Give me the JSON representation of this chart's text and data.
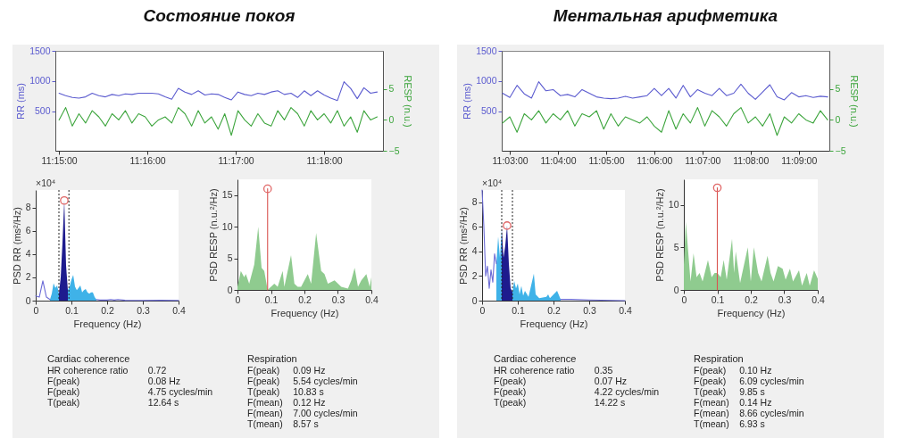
{
  "chart_data": [
    {
      "type": "line",
      "title": "Состояние покоя",
      "ylabel": "RR (ms)",
      "y2label": "RESP (n.u.)",
      "x": [
        11.25,
        11.25125,
        11.2525,
        11.25375,
        11.255,
        11.25625,
        11.2575,
        11.25875,
        11.26,
        11.26125,
        11.2625,
        11.26375,
        11.265,
        11.26625,
        11.2675,
        11.26875,
        11.27,
        11.27125,
        11.2725,
        11.27375,
        11.275,
        11.27625,
        11.2775,
        11.27875,
        11.28,
        11.28125,
        11.2825,
        11.28375,
        11.285,
        11.28625,
        11.2875,
        11.28875,
        11.29,
        11.29125,
        11.2925,
        11.29375,
        11.295,
        11.29625,
        11.2975,
        11.29875,
        11.3,
        11.30125,
        11.3025,
        11.30375,
        11.305,
        11.30625,
        11.3075,
        11.30875,
        11.31
      ],
      "xlim": [
        11.2493,
        11.3111
      ],
      "xticks": [
        {
          "value": 11.25,
          "label": "11:15:00"
        },
        {
          "value": 11.266667,
          "label": "11:16:00"
        },
        {
          "value": 11.283333,
          "label": "11:17:00"
        },
        {
          "value": 11.3,
          "label": "11:18:00"
        }
      ],
      "ylim": [
        -150,
        1500
      ],
      "yticks": [
        500,
        1000,
        1500
      ],
      "y2lim": [
        -5,
        11.2
      ],
      "y2ticks": [
        -5,
        0,
        5
      ],
      "series": [
        {
          "color": "#5b5bcf",
          "values": [
            800,
            760,
            730,
            720,
            740,
            800,
            760,
            740,
            780,
            760,
            790,
            780,
            800,
            800,
            800,
            790,
            740,
            700,
            880,
            820,
            780,
            840,
            770,
            790,
            780,
            730,
            690,
            820,
            780,
            760,
            800,
            780,
            820,
            840,
            780,
            800,
            730,
            840,
            760,
            840,
            770,
            720,
            680,
            990,
            880,
            710,
            890,
            800,
            820
          ]
        },
        {
          "color": "#3da53d",
          "axis": "y2",
          "values": [
            0,
            2,
            -1,
            1,
            -0.5,
            1.5,
            0.5,
            -1,
            1,
            0,
            1.5,
            -0.5,
            1,
            0.5,
            -1,
            0,
            0.5,
            -0.5,
            2,
            1,
            -1,
            1.5,
            -0.5,
            0.5,
            -1.5,
            1,
            -2.5,
            1.5,
            0,
            -1,
            1,
            -0.5,
            -1,
            1.5,
            0,
            2,
            1,
            -1,
            1.5,
            0,
            1,
            -0.5,
            1.5,
            -1,
            0.5,
            -2,
            1.5,
            0,
            0.5
          ]
        }
      ]
    },
    {
      "type": "area",
      "xlabel": "Frequency (Hz)",
      "ylabel": "PSD RR (ms²/Hz)",
      "annotations": [
        "×10⁴"
      ],
      "xlim": [
        0,
        0.4
      ],
      "xticks": [
        0,
        0.1,
        0.2,
        0.3,
        0.4
      ],
      "ylim": [
        0,
        9.5
      ],
      "yticks": [
        0,
        2,
        4,
        6,
        8
      ],
      "ref_lines": [
        {
          "axis": "x",
          "value": 0.065,
          "color": "#222222",
          "line_style": "dotted"
        },
        {
          "axis": "x",
          "value": 0.093,
          "color": "#222222",
          "line_style": "dotted"
        }
      ],
      "series": [
        {
          "type": "area",
          "color": "#3fb2e8",
          "x": [
            0.04,
            0.045,
            0.05,
            0.055,
            0.06,
            0.065
          ],
          "values": [
            0.1,
            0.6,
            1.5,
            1.1,
            1.3,
            0.6
          ]
        },
        {
          "type": "area",
          "color": "#3fb2e8",
          "x": [
            0.09,
            0.095,
            0.1,
            0.105,
            0.11,
            0.115,
            0.12,
            0.125,
            0.13,
            0.135,
            0.14,
            0.145,
            0.15,
            0.155,
            0.16,
            0.165,
            0.17
          ],
          "values": [
            0.9,
            1.2,
            1.8,
            2.2,
            1.2,
            0.9,
            1.1,
            1.3,
            0.7,
            0.9,
            1.0,
            0.7,
            0.6,
            0.7,
            0.7,
            0.3,
            0.1
          ]
        },
        {
          "type": "area",
          "color": "#1e1b8e",
          "x": [
            0.065,
            0.07,
            0.075,
            0.08,
            0.085,
            0.09
          ],
          "values": [
            0.6,
            2.0,
            5.0,
            8.6,
            3.0,
            0.9
          ]
        },
        {
          "type": "line",
          "color": "#6b6bd6",
          "x": [
            0,
            0.01,
            0.02,
            0.03,
            0.04,
            0.1,
            0.17,
            0.18,
            0.2,
            0.21,
            0.22,
            0.23,
            0.25,
            0.3,
            0.35,
            0.4
          ],
          "values": [
            0.4,
            0.3,
            1.7,
            0.3,
            0.1,
            null,
            0.1,
            0.05,
            0.05,
            0.1,
            0.05,
            0.1,
            0.03,
            0.02,
            0.03,
            0.02
          ]
        },
        {
          "type": "scatter",
          "marker": "circle",
          "color": "#e06666",
          "x": [
            0.08
          ],
          "values": [
            8.6
          ]
        }
      ]
    },
    {
      "type": "area",
      "xlabel": "Frequency (Hz)",
      "ylabel": "PSD RESP (n.u.²/Hz)",
      "xlim": [
        0,
        0.4
      ],
      "xticks": [
        0,
        0.1,
        0.2,
        0.3,
        0.4
      ],
      "ylim": [
        0,
        17.5
      ],
      "yticks": [
        0,
        5,
        10,
        15
      ],
      "series": [
        {
          "type": "area",
          "color": "#8fcb8f",
          "x": [
            0,
            0.01,
            0.02,
            0.025,
            0.035,
            0.05,
            0.062,
            0.072,
            0.08,
            0.09,
            0.1,
            0.11,
            0.12,
            0.135,
            0.14,
            0.16,
            0.17,
            0.18,
            0.19,
            0.21,
            0.22,
            0.235,
            0.25,
            0.26,
            0.27,
            0.29,
            0.31,
            0.33,
            0.34,
            0.35,
            0.36,
            0.37,
            0.385,
            0.395,
            0.4
          ],
          "values": [
            0.5,
            3,
            2,
            2.5,
            1,
            4,
            10,
            3.5,
            3,
            0,
            0.5,
            1,
            0.5,
            3,
            0.5,
            5.5,
            1,
            0.5,
            0.5,
            2.5,
            1,
            9,
            3,
            2.5,
            1,
            1.5,
            0.5,
            0.2,
            1.5,
            3.5,
            0.5,
            1.5,
            2.5,
            0.5,
            2
          ]
        },
        {
          "type": "line",
          "color": "#d9534f",
          "x": [
            0.09,
            0.09
          ],
          "values": [
            0,
            16
          ]
        },
        {
          "type": "scatter",
          "marker": "circle",
          "color": "#e06666",
          "x": [
            0.09
          ],
          "values": [
            16
          ]
        }
      ]
    },
    {
      "type": "other",
      "title": "Cardiac coherence",
      "annotations": [
        "HR coherence ratio",
        "0.72",
        "F(peak)",
        "0.08 Hz",
        "F(peak)",
        "4.75 cycles/min",
        "T(peak)",
        "12.64 s"
      ]
    },
    {
      "type": "other",
      "title": "Respiration",
      "annotations": [
        "F(peak)",
        "0.09 Hz",
        "F(peak)",
        "5.54 cycles/min",
        "T(peak)",
        "10.83 s",
        "F(mean)",
        "0.12 Hz",
        "F(mean)",
        "7.00 cycles/min",
        "T(mean)",
        "8.57 s"
      ]
    },
    {
      "type": "line",
      "title": "Ментальная арифметика",
      "ylabel": "RR (ms)",
      "y2label": "RESP (n.u.)",
      "x": [
        11.0475,
        11.05,
        11.0525,
        11.055,
        11.0575,
        11.06,
        11.0625,
        11.065,
        11.0675,
        11.07,
        11.0725,
        11.075,
        11.0775,
        11.08,
        11.0825,
        11.085,
        11.0875,
        11.09,
        11.0925,
        11.095,
        11.0975,
        11.1,
        11.1025,
        11.105,
        11.1075,
        11.11,
        11.1125,
        11.115,
        11.1175,
        11.12,
        11.1225,
        11.125,
        11.1275,
        11.13,
        11.1325,
        11.135,
        11.1375,
        11.14,
        11.1425,
        11.145,
        11.1475,
        11.15,
        11.1525,
        11.155,
        11.1575,
        11.16
      ],
      "xlim": [
        11.0472,
        11.1606
      ],
      "xticks": [
        {
          "value": 11.05,
          "label": "11:03:00"
        },
        {
          "value": 11.066667,
          "label": "11:04:00"
        },
        {
          "value": 11.083333,
          "label": "11:05:00"
        },
        {
          "value": 11.1,
          "label": "11:06:00"
        },
        {
          "value": 11.116667,
          "label": "11:07:00"
        },
        {
          "value": 11.133333,
          "label": "11:08:00"
        },
        {
          "value": 11.15,
          "label": "11:09:00"
        }
      ],
      "ylim": [
        -150,
        1500
      ],
      "yticks": [
        500,
        1000,
        1500
      ],
      "y2lim": [
        -5,
        11.2
      ],
      "y2ticks": [
        -5,
        0,
        5
      ],
      "series": [
        {
          "color": "#5b5bcf",
          "values": [
            800,
            730,
            930,
            790,
            720,
            990,
            840,
            860,
            760,
            780,
            740,
            860,
            800,
            740,
            720,
            710,
            720,
            750,
            720,
            740,
            760,
            880,
            760,
            880,
            720,
            930,
            740,
            860,
            800,
            760,
            880,
            760,
            800,
            950,
            800,
            700,
            820,
            940,
            740,
            690,
            810,
            740,
            760,
            730,
            750,
            740
          ]
        },
        {
          "color": "#3da53d",
          "axis": "y2",
          "values": [
            -0.5,
            0.5,
            -2,
            1,
            0,
            1.5,
            -0.5,
            1,
            0,
            1.5,
            -1,
            1,
            0.5,
            1.5,
            -1.5,
            1,
            -1,
            0.5,
            0,
            -0.5,
            0.5,
            -1,
            -2,
            1.5,
            -1.5,
            1,
            -0.5,
            2,
            -1,
            1.5,
            0.5,
            -1,
            1,
            2,
            -0.5,
            0.5,
            -1,
            1,
            -2.5,
            0.5,
            -0.5,
            1,
            0,
            -0.5,
            1.5,
            0
          ]
        }
      ]
    },
    {
      "type": "area",
      "xlabel": "Frequency (Hz)",
      "ylabel": "PSD RR (ms²/Hz)",
      "annotations": [
        "×10⁴"
      ],
      "xlim": [
        0,
        0.4
      ],
      "xticks": [
        0,
        0.1,
        0.2,
        0.3,
        0.4
      ],
      "ylim": [
        0,
        9
      ],
      "yticks": [
        0,
        2,
        4,
        6,
        8
      ],
      "ref_lines": [
        {
          "axis": "x",
          "value": 0.055,
          "color": "#222222",
          "line_style": "dotted"
        },
        {
          "axis": "x",
          "value": 0.085,
          "color": "#222222",
          "line_style": "dotted"
        }
      ],
      "series": [
        {
          "type": "area",
          "color": "#3fb2e8",
          "x": [
            0.04,
            0.045,
            0.05,
            0.055
          ],
          "values": [
            3,
            5.2,
            3.5,
            5.8
          ]
        },
        {
          "type": "area",
          "color": "#3fb2e8",
          "x": [
            0.085,
            0.09,
            0.095,
            0.1,
            0.105,
            0.11,
            0.115,
            0.12,
            0.13,
            0.145,
            0.15,
            0.16,
            0.18,
            0.185,
            0.19,
            0.21,
            0.22
          ],
          "values": [
            0.7,
            1.6,
            1,
            1.4,
            0.5,
            1.2,
            0.4,
            0.8,
            0.3,
            2.2,
            0.5,
            0.2,
            0.3,
            0.5,
            0.2,
            0.8,
            0.1
          ]
        },
        {
          "type": "area",
          "color": "#1e1b8e",
          "x": [
            0.055,
            0.06,
            0.065,
            0.07,
            0.075,
            0.08,
            0.085
          ],
          "values": [
            5.8,
            3.5,
            4.5,
            6.1,
            3,
            1,
            0.7
          ]
        },
        {
          "type": "line",
          "color": "#6b6bd6",
          "x": [
            0,
            0.005,
            0.01,
            0.015,
            0.02,
            0.025,
            0.03,
            0.035,
            0.04,
            0.1,
            0.22,
            0.25,
            0.3,
            0.4
          ],
          "values": [
            9,
            6,
            2,
            2.8,
            1,
            2.5,
            1.5,
            3.8,
            3,
            null,
            0.1,
            0.1,
            0.05,
            0
          ]
        },
        {
          "type": "scatter",
          "marker": "circle",
          "color": "#e06666",
          "x": [
            0.07
          ],
          "values": [
            6.1
          ]
        }
      ]
    },
    {
      "type": "area",
      "xlabel": "Frequency (Hz)",
      "ylabel": "PSD RESP (n.u.²/Hz)",
      "xlim": [
        0,
        0.4
      ],
      "xticks": [
        0,
        0.1,
        0.2,
        0.3,
        0.4
      ],
      "ylim": [
        0,
        13
      ],
      "yticks": [
        0,
        5,
        10
      ],
      "series": [
        {
          "type": "area",
          "color": "#8fcb8f",
          "x": [
            0,
            0.006,
            0.02,
            0.029,
            0.038,
            0.047,
            0.056,
            0.072,
            0.083,
            0.092,
            0.1,
            0.11,
            0.119,
            0.128,
            0.144,
            0.15,
            0.155,
            0.168,
            0.191,
            0.2,
            0.209,
            0.222,
            0.232,
            0.25,
            0.259,
            0.268,
            0.281,
            0.295,
            0.304,
            0.317,
            0.326,
            0.344,
            0.353,
            0.367,
            0.376,
            0.389,
            0.4
          ],
          "values": [
            3,
            8,
            1,
            4.3,
            1.5,
            2,
            1,
            3.5,
            1.5,
            2,
            2,
            1.5,
            3.5,
            1.2,
            6,
            2,
            4.5,
            0.8,
            5,
            1,
            5,
            2,
            1,
            4,
            2,
            1,
            2.8,
            2.5,
            1.2,
            2.5,
            1,
            2.3,
            0.5,
            2,
            0.5,
            2.3,
            1.3
          ]
        },
        {
          "type": "line",
          "color": "#d9534f",
          "x": [
            0.1,
            0.1
          ],
          "values": [
            0,
            12
          ]
        },
        {
          "type": "scatter",
          "marker": "circle",
          "color": "#e06666",
          "x": [
            0.1
          ],
          "values": [
            12
          ]
        }
      ]
    },
    {
      "type": "other",
      "title": "Cardiac coherence",
      "annotations": [
        "HR coherence ratio",
        "0.35",
        "F(peak)",
        "0.07 Hz",
        "F(peak)",
        "4.22 cycles/min",
        "T(peak)",
        "14.22 s"
      ]
    },
    {
      "type": "other",
      "title": "Respiration",
      "annotations": [
        "F(peak)",
        "0.10 Hz",
        "F(peak)",
        "6.09 cycles/min",
        "T(peak)",
        "9.85 s",
        "F(mean)",
        "0.14 Hz",
        "F(mean)",
        "8.66 cycles/min",
        "T(mean)",
        "6.93 s"
      ]
    }
  ]
}
